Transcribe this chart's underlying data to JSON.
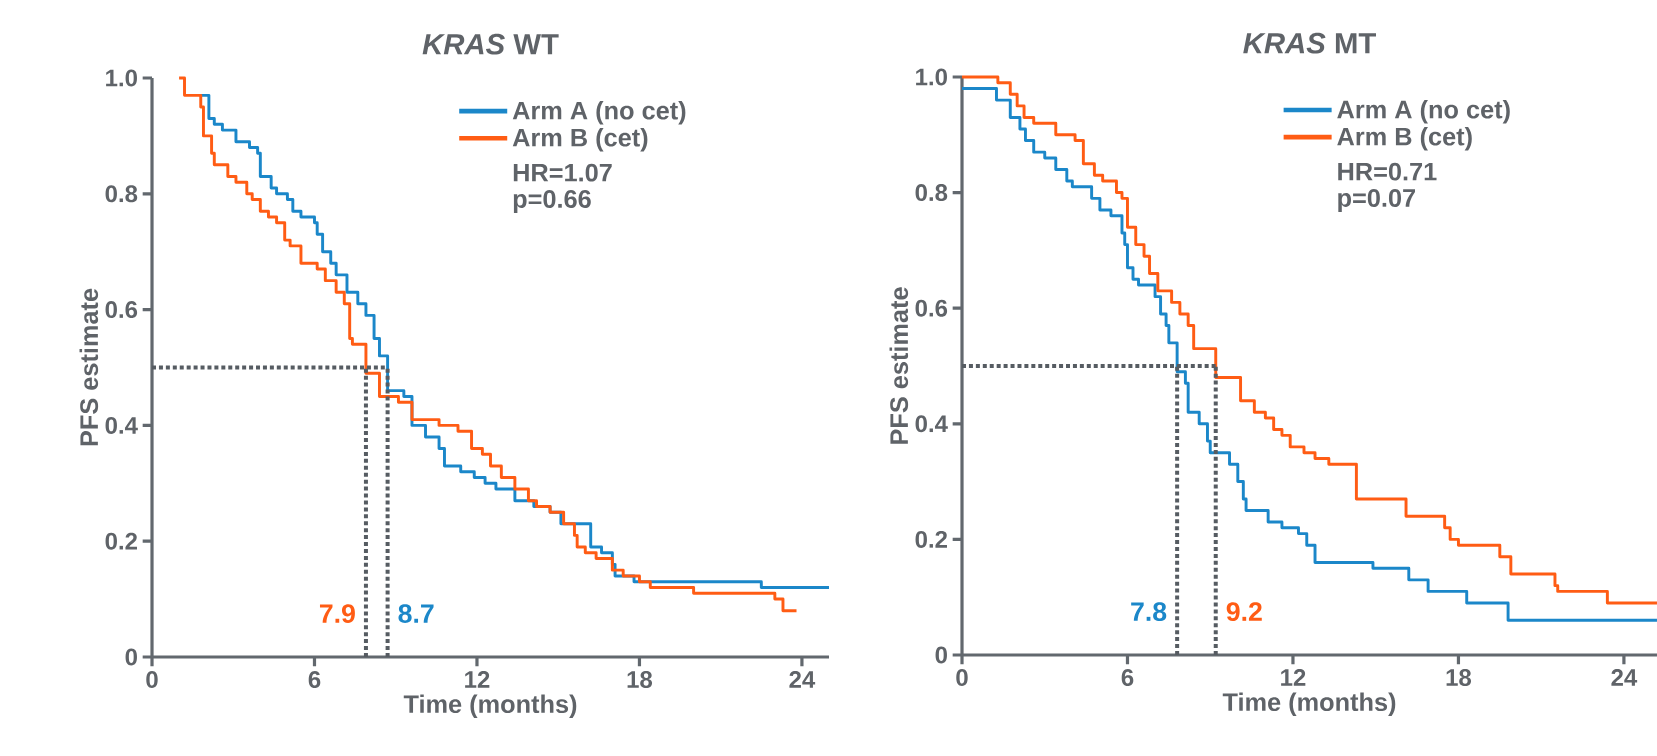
{
  "chart_data": [
    {
      "type": "step",
      "title": "*KRAS* WT",
      "xlabel": "Time (months)",
      "ylabel": "PFS estimate",
      "xlim": [
        0,
        25
      ],
      "xticks": [
        0,
        6,
        12,
        18,
        24
      ],
      "ylim": [
        0,
        1
      ],
      "yticks": [
        0,
        0.2,
        0.4,
        0.6,
        0.8,
        {
          "value": 1,
          "label": "1.0"
        }
      ],
      "legend": "top right",
      "annotations": [
        "HR=1.07",
        "p=0.66"
      ],
      "ref_lines": [
        {
          "axis": "y",
          "value": 0.5,
          "color": "#565c62",
          "line_style": "dotted"
        },
        {
          "axis": "x",
          "value": 7.9,
          "label": "7.9",
          "color": "#565c62",
          "line_style": "dotted"
        },
        {
          "axis": "x",
          "value": 8.7,
          "label": "8.7",
          "color": "#565c62",
          "line_style": "dotted"
        }
      ],
      "series": [
        {
          "name": "Arm A (no cet)",
          "color": "#1b87c9",
          "x": [
            1.8,
            2.1,
            2.3,
            2.6,
            3.1,
            3.6,
            3.9,
            4.0,
            4.4,
            4.6,
            5.0,
            5.2,
            5.5,
            6.0,
            6.1,
            6.3,
            6.6,
            6.8,
            7.2,
            7.6,
            7.9,
            8.2,
            8.4,
            8.7,
            9.3,
            9.6,
            10.1,
            10.6,
            10.8,
            11.4,
            11.9,
            12.3,
            12.7,
            13.4,
            14.1,
            14.7,
            15.1,
            16.2,
            16.6,
            17.0,
            17.1,
            17.8,
            22.5,
            25.0
          ],
          "values": [
            0.97,
            0.93,
            0.92,
            0.91,
            0.89,
            0.88,
            0.87,
            0.83,
            0.81,
            0.8,
            0.79,
            0.77,
            0.76,
            0.75,
            0.73,
            0.7,
            0.68,
            0.66,
            0.63,
            0.61,
            0.59,
            0.55,
            0.52,
            0.46,
            0.45,
            0.4,
            0.38,
            0.36,
            0.33,
            0.32,
            0.31,
            0.3,
            0.29,
            0.27,
            0.26,
            0.25,
            0.23,
            0.19,
            0.18,
            0.16,
            0.14,
            0.13,
            0.12,
            0.12
          ]
        },
        {
          "name": "Arm B (cet)",
          "color": "#ff5c14",
          "x": [
            1.0,
            1.2,
            1.8,
            1.9,
            2.2,
            2.3,
            2.8,
            3.1,
            3.5,
            3.7,
            4.0,
            4.3,
            4.6,
            4.9,
            5.1,
            5.5,
            6.1,
            6.4,
            6.8,
            7.1,
            7.3,
            7.4,
            7.9,
            8.4,
            9.1,
            9.6,
            10.6,
            11.3,
            11.8,
            12.2,
            12.5,
            12.9,
            13.4,
            13.9,
            14.2,
            14.7,
            15.2,
            15.6,
            15.7,
            16.0,
            16.4,
            17.0,
            17.4,
            18.0,
            18.4,
            20.0,
            23.0,
            23.3,
            23.8
          ],
          "values": [
            1.0,
            0.97,
            0.95,
            0.9,
            0.87,
            0.85,
            0.83,
            0.82,
            0.8,
            0.79,
            0.77,
            0.76,
            0.75,
            0.72,
            0.71,
            0.68,
            0.67,
            0.65,
            0.63,
            0.61,
            0.55,
            0.54,
            0.49,
            0.45,
            0.44,
            0.41,
            0.4,
            0.39,
            0.36,
            0.35,
            0.33,
            0.31,
            0.29,
            0.27,
            0.26,
            0.25,
            0.23,
            0.21,
            0.19,
            0.18,
            0.17,
            0.15,
            0.14,
            0.13,
            0.12,
            0.11,
            0.1,
            0.08,
            0.08
          ]
        }
      ]
    },
    {
      "type": "step",
      "title": "*KRAS* MT",
      "xlabel": "Time (months)",
      "ylabel": "PFS estimate",
      "xlim": [
        0,
        25.2
      ],
      "xticks": [
        0,
        6,
        12,
        18,
        24
      ],
      "ylim": [
        0,
        1
      ],
      "yticks": [
        0,
        0.2,
        0.4,
        0.6,
        0.8,
        {
          "value": 1,
          "label": "1.0"
        }
      ],
      "legend": "top right",
      "annotations": [
        "HR=0.71",
        "p=0.07"
      ],
      "ref_lines": [
        {
          "axis": "y",
          "value": 0.5,
          "color": "#565c62",
          "line_style": "dotted"
        },
        {
          "axis": "x",
          "value": 7.8,
          "label": "7.8",
          "color": "#565c62",
          "line_style": "dotted"
        },
        {
          "axis": "x",
          "value": 9.2,
          "label": "9.2",
          "color": "#565c62",
          "line_style": "dotted"
        }
      ],
      "series": [
        {
          "name": "Arm A (no cet)",
          "color": "#1b87c9",
          "x": [
            0,
            1.25,
            1.75,
            2.1,
            2.3,
            2.6,
            3.0,
            3.4,
            3.8,
            4.0,
            4.7,
            5.0,
            5.4,
            5.8,
            5.9,
            6.0,
            6.2,
            6.4,
            7.0,
            7.2,
            7.4,
            7.5,
            7.8,
            8.1,
            8.2,
            8.6,
            8.9,
            9.0,
            9.7,
            10.0,
            10.2,
            10.3,
            11.1,
            11.6,
            12.2,
            12.5,
            12.8,
            14.9,
            16.2,
            16.9,
            18.3,
            19.8,
            25.2
          ],
          "values": [
            0.98,
            0.96,
            0.93,
            0.91,
            0.89,
            0.87,
            0.86,
            0.84,
            0.82,
            0.81,
            0.79,
            0.77,
            0.76,
            0.73,
            0.71,
            0.67,
            0.65,
            0.64,
            0.62,
            0.59,
            0.57,
            0.54,
            0.49,
            0.47,
            0.42,
            0.4,
            0.37,
            0.35,
            0.33,
            0.3,
            0.27,
            0.25,
            0.23,
            0.22,
            0.21,
            0.19,
            0.16,
            0.15,
            0.13,
            0.11,
            0.09,
            0.06,
            0.06
          ]
        },
        {
          "name": "Arm B (cet)",
          "color": "#ff5c14",
          "x": [
            0,
            1.3,
            1.75,
            2.0,
            2.25,
            2.6,
            3.4,
            4.1,
            4.4,
            4.8,
            5.1,
            5.6,
            5.8,
            6.0,
            6.3,
            6.6,
            6.8,
            7.1,
            7.6,
            7.9,
            8.2,
            8.4,
            9.2,
            10.1,
            10.6,
            11.0,
            11.3,
            11.6,
            11.9,
            12.4,
            12.8,
            13.3,
            14.3,
            16.1,
            17.5,
            17.7,
            18.0,
            19.5,
            19.9,
            21.5,
            21.6,
            23.4,
            25.2
          ],
          "values": [
            1.0,
            0.99,
            0.97,
            0.95,
            0.93,
            0.92,
            0.9,
            0.89,
            0.85,
            0.83,
            0.82,
            0.8,
            0.79,
            0.74,
            0.71,
            0.69,
            0.66,
            0.63,
            0.61,
            0.59,
            0.57,
            0.53,
            0.48,
            0.44,
            0.42,
            0.41,
            0.39,
            0.38,
            0.36,
            0.35,
            0.34,
            0.33,
            0.27,
            0.24,
            0.22,
            0.2,
            0.19,
            0.17,
            0.14,
            0.12,
            0.11,
            0.09,
            0.09
          ]
        }
      ]
    }
  ]
}
